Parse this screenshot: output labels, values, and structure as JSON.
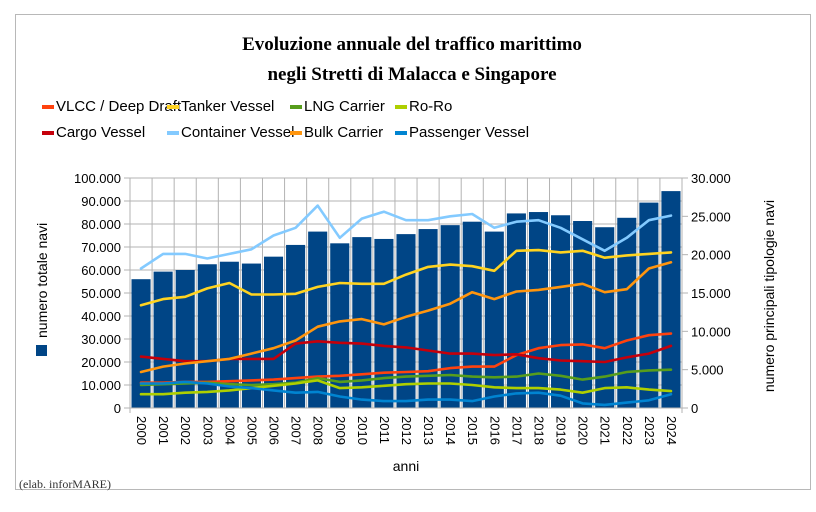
{
  "chart_data": {
    "type": "bar+line",
    "title_lines": [
      "Evoluzione annuale del traffico marittimo",
      "negli Stretti di Malacca e Singapore"
    ],
    "xlabel": "anni",
    "ylabel_left": "numero totale navi",
    "ylabel_right": "numero principali tipologie navi",
    "credit": "(elab. inforMARE)",
    "grid": true,
    "legend_position": "top",
    "left_axis": {
      "min": 0,
      "max": 100000,
      "step": 10000,
      "tick_labels": [
        "0",
        "10.000",
        "20.000",
        "30.000",
        "40.000",
        "50.000",
        "60.000",
        "70.000",
        "80.000",
        "90.000",
        "100.000"
      ]
    },
    "right_axis": {
      "min": 0,
      "max": 30000,
      "step": 5000,
      "tick_labels": [
        "0",
        "5.000",
        "10.000",
        "15.000",
        "20.000",
        "25.000",
        "30.000"
      ]
    },
    "categories": [
      "2000",
      "2001",
      "2002",
      "2003",
      "2004",
      "2005",
      "2006",
      "2007",
      "2008",
      "2009",
      "2010",
      "2011",
      "2012",
      "2013",
      "2014",
      "2015",
      "2016",
      "2017",
      "2018",
      "2019",
      "2020",
      "2021",
      "2022",
      "2023",
      "2024"
    ],
    "bar_series": {
      "name": "numero totale navi",
      "axis": "left",
      "color": "#004586",
      "values": [
        56000,
        59300,
        60000,
        62500,
        63600,
        62800,
        65800,
        70900,
        76700,
        71600,
        74300,
        73500,
        75600,
        77800,
        79500,
        81000,
        76700,
        84600,
        85200,
        83800,
        81300,
        78600,
        82700,
        89300,
        94300
      ]
    },
    "line_series": [
      {
        "name": "VLCC / Deep Draft",
        "axis": "right",
        "color": "#ff420e",
        "values": [
          3300,
          3300,
          3400,
          3400,
          3500,
          3600,
          3700,
          3900,
          4100,
          4200,
          4400,
          4600,
          4700,
          4800,
          5200,
          5400,
          5400,
          6900,
          7800,
          8200,
          8300,
          7800,
          8800,
          9500,
          9700
        ]
      },
      {
        "name": "Tanker Vessel",
        "axis": "right",
        "color": "#ffd320",
        "values": [
          13400,
          14200,
          14500,
          15600,
          16300,
          14800,
          14800,
          14900,
          15800,
          16300,
          16200,
          16200,
          17400,
          18400,
          18700,
          18500,
          17900,
          20500,
          20600,
          20300,
          20500,
          19600,
          19900,
          20100,
          20300
        ]
      },
      {
        "name": "LNG Carrier",
        "axis": "right",
        "color": "#579d1c",
        "values": [
          3000,
          3100,
          3200,
          3300,
          3100,
          3000,
          3100,
          3300,
          3900,
          3400,
          3600,
          3900,
          4100,
          4200,
          4300,
          4100,
          4000,
          4100,
          4500,
          4200,
          3700,
          4100,
          4700,
          4900,
          5000
        ]
      },
      {
        "name": "Ro-Ro",
        "axis": "right",
        "color": "#aecf00",
        "values": [
          1800,
          1800,
          2000,
          2100,
          2300,
          2600,
          2900,
          3200,
          3600,
          2600,
          2700,
          2900,
          3100,
          3200,
          3200,
          3000,
          2700,
          2600,
          2600,
          2400,
          2000,
          2600,
          2700,
          2400,
          2200
        ]
      },
      {
        "name": "Cargo Vessel",
        "axis": "right",
        "color": "#c5000b",
        "values": [
          6700,
          6400,
          6100,
          6100,
          6400,
          6400,
          6400,
          8400,
          8700,
          8500,
          8400,
          8100,
          7900,
          7500,
          7100,
          7100,
          6900,
          7000,
          6500,
          6200,
          6100,
          6000,
          6600,
          7100,
          8100
        ]
      },
      {
        "name": "Container Vessel",
        "axis": "right",
        "color": "#83caff",
        "values": [
          18200,
          20100,
          20100,
          19500,
          20100,
          20700,
          22500,
          23500,
          26400,
          22200,
          24700,
          25600,
          24500,
          24500,
          25000,
          25300,
          23500,
          24300,
          24500,
          23500,
          22000,
          20500,
          22200,
          24500,
          25100
        ]
      },
      {
        "name": "Bulk Carrier",
        "axis": "right",
        "color": "#ff950e",
        "values": [
          4700,
          5400,
          5800,
          6100,
          6400,
          7100,
          7800,
          8800,
          10600,
          11300,
          11600,
          10900,
          11900,
          12700,
          13600,
          15100,
          14200,
          15200,
          15400,
          15800,
          16200,
          15100,
          15500,
          18200,
          19000
        ]
      },
      {
        "name": "Passenger Vessel",
        "axis": "right",
        "color": "#0084d1",
        "values": [
          3200,
          3200,
          3400,
          3200,
          2800,
          2600,
          2300,
          2000,
          2100,
          1500,
          1100,
          900,
          900,
          1100,
          1100,
          900,
          1500,
          1900,
          2000,
          1600,
          600,
          400,
          700,
          1000,
          1800
        ]
      }
    ],
    "legend": [
      {
        "label": "VLCC / Deep Draft",
        "color": "#ff420e"
      },
      {
        "label": "Tanker Vessel",
        "color": "#ffd320"
      },
      {
        "label": "LNG Carrier",
        "color": "#579d1c"
      },
      {
        "label": "Ro-Ro",
        "color": "#aecf00"
      },
      {
        "label": "Cargo Vessel",
        "color": "#c5000b"
      },
      {
        "label": "Container Vessel",
        "color": "#83caff"
      },
      {
        "label": "Bulk Carrier",
        "color": "#ff950e"
      },
      {
        "label": "Passenger Vessel",
        "color": "#0084d1"
      }
    ]
  }
}
